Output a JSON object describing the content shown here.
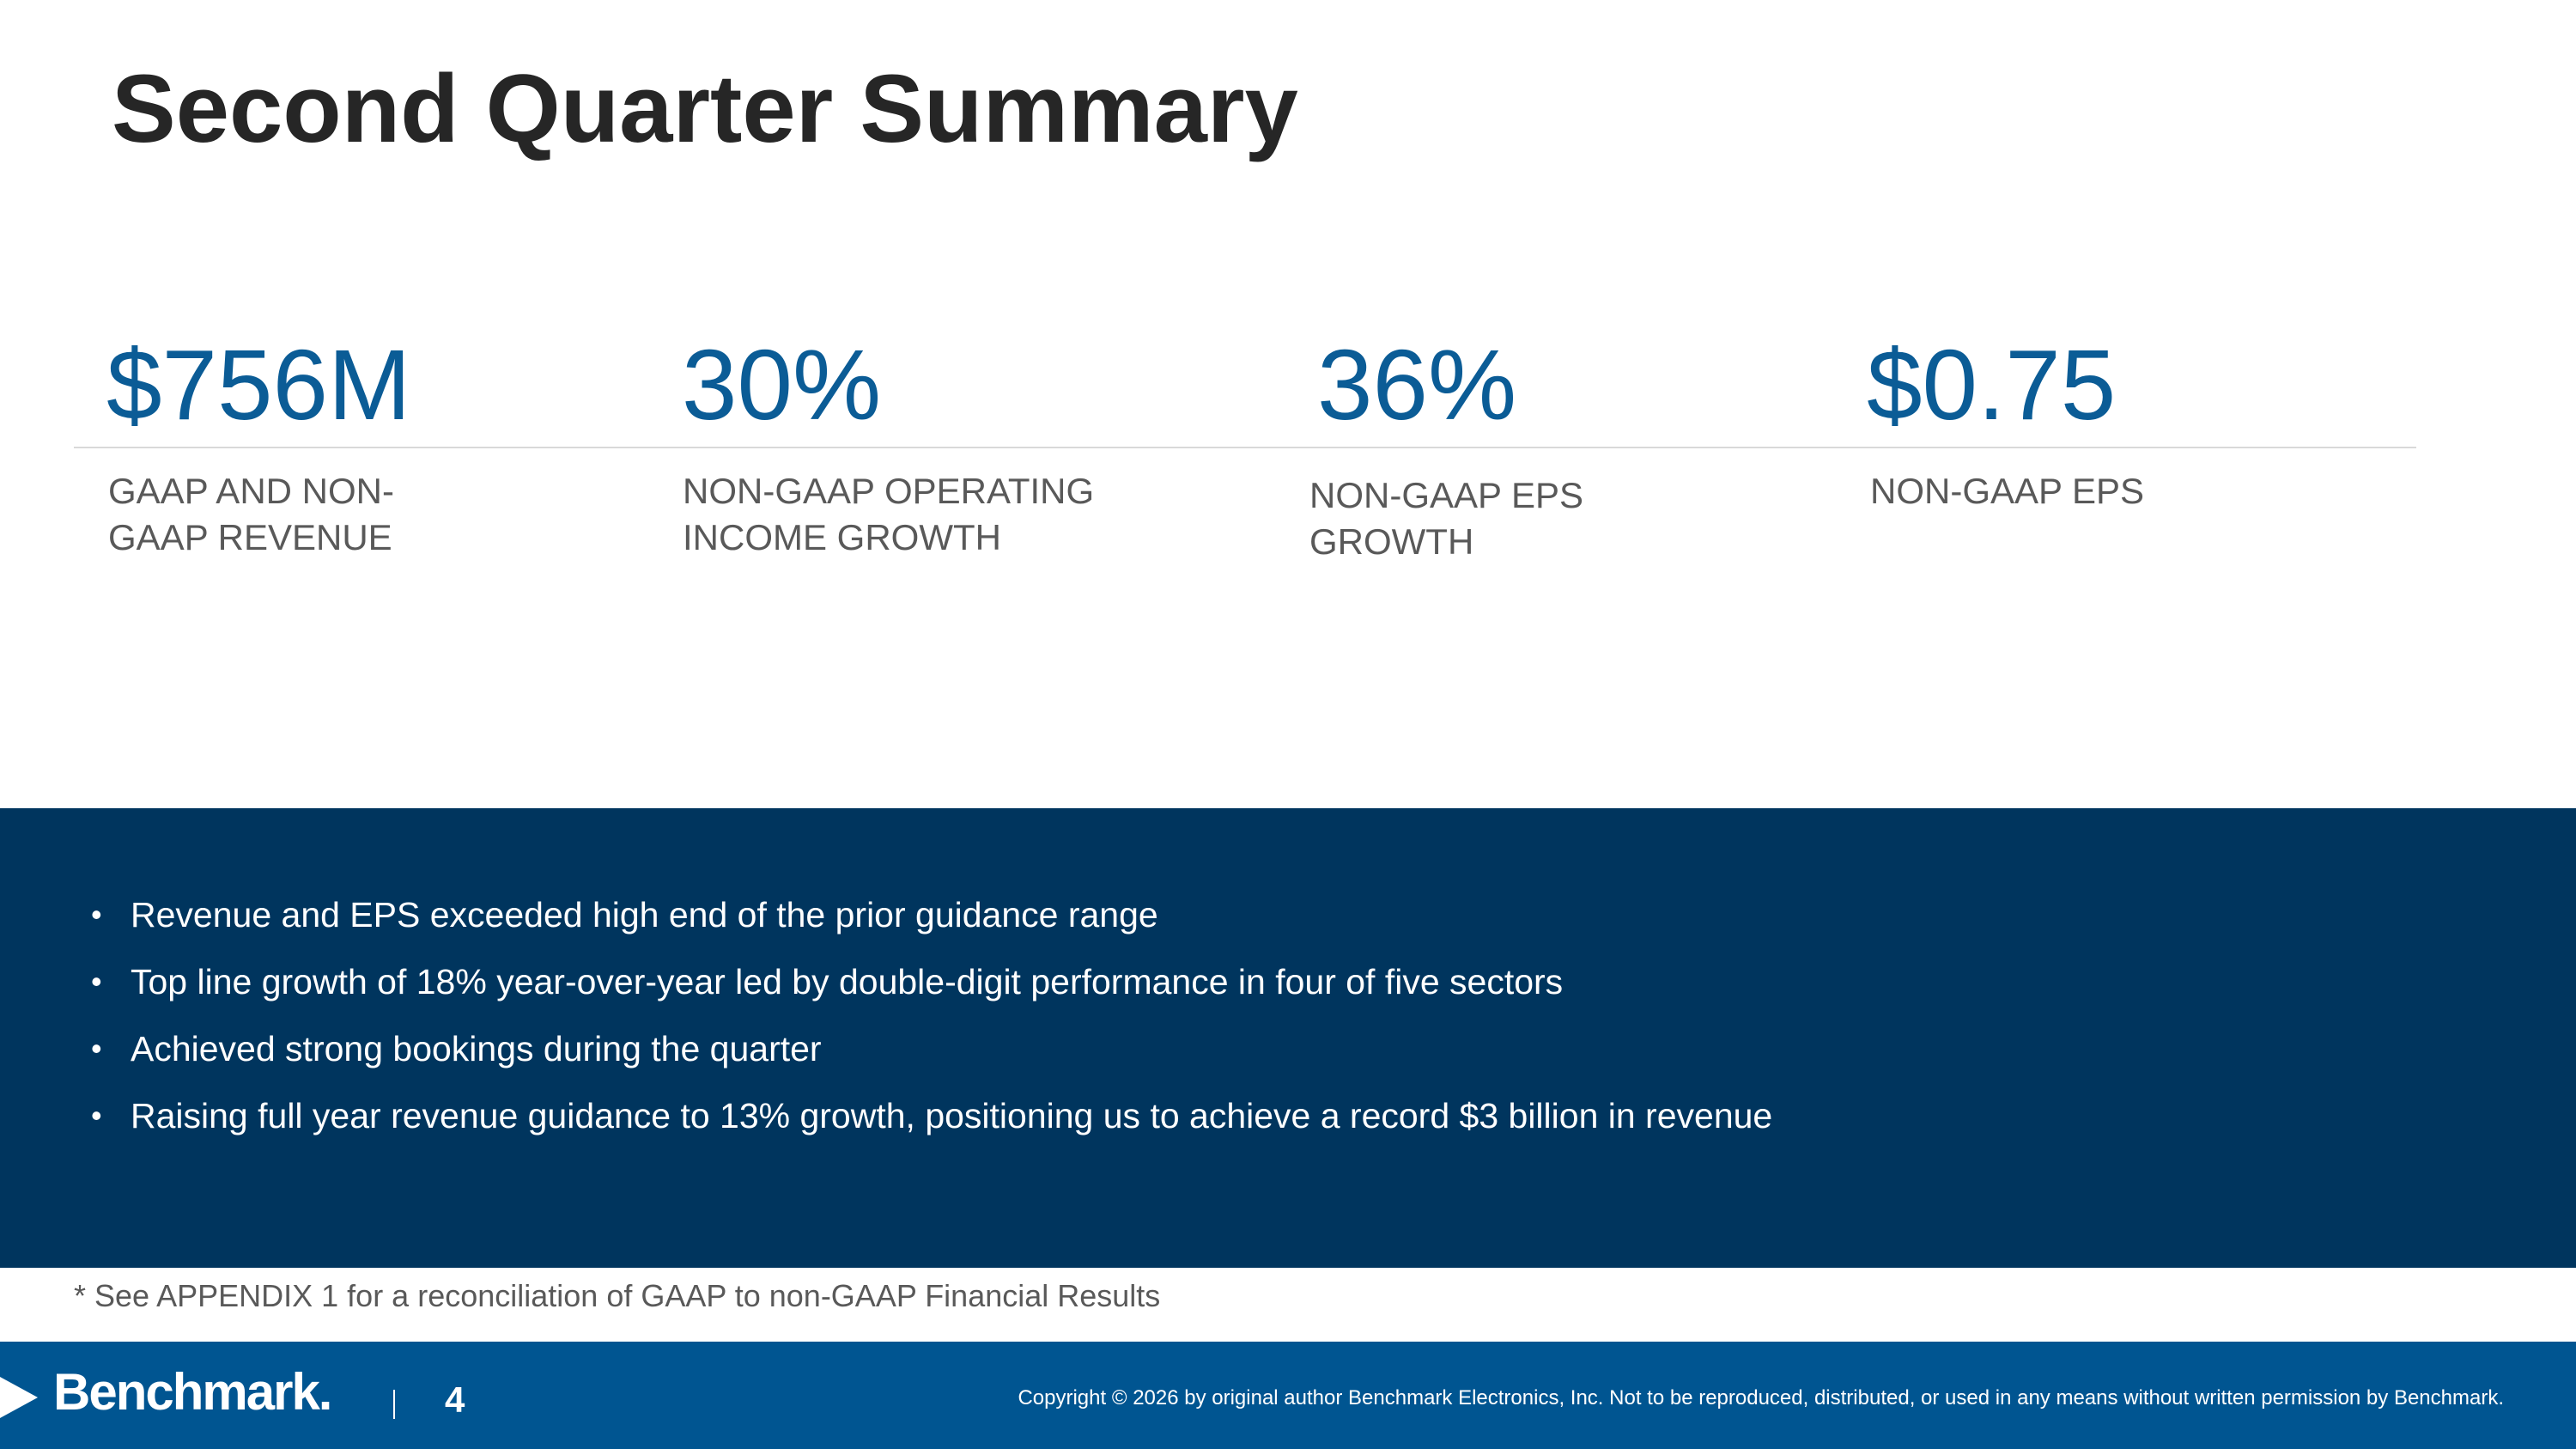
{
  "slide": {
    "title": "Second Quarter Summary"
  },
  "kpis": [
    {
      "value": "$756M",
      "label_line1": "GAAP AND NON-",
      "label_line2": "GAAP REVENUE"
    },
    {
      "value": "30%",
      "label_line1": "NON-GAAP OPERATING",
      "label_line2": "INCOME GROWTH"
    },
    {
      "value": "36%",
      "label_line1": "NON-GAAP EPS",
      "label_line2": "GROWTH"
    },
    {
      "value": "$0.75",
      "label_line1": "NON-GAAP EPS",
      "label_line2": ""
    }
  ],
  "highlights": {
    "bullet_glyph": "•",
    "items": [
      "Revenue and EPS exceeded high end of the prior guidance range",
      "Top line growth of 18% year-over-year led by double-digit performance in four of five sectors",
      "Achieved strong bookings during the quarter",
      "Raising full year revenue guidance to 13% growth, positioning us to achieve a record $3 billion in revenue"
    ]
  },
  "footnote": "* See APPENDIX 1 for a reconciliation of GAAP to non-GAAP Financial Results",
  "footer": {
    "logo_text": "Benchmark.",
    "page_number": "4",
    "copyright": "Copyright © 2026 by original author Benchmark Electronics, Inc. Not to be reproduced, distributed, or used in any means without written permission by Benchmark."
  },
  "colors": {
    "title": "#262626",
    "kpi_value": "#0b5c96",
    "highlights_bg": "#00355e",
    "footer_bg": "#005591"
  }
}
